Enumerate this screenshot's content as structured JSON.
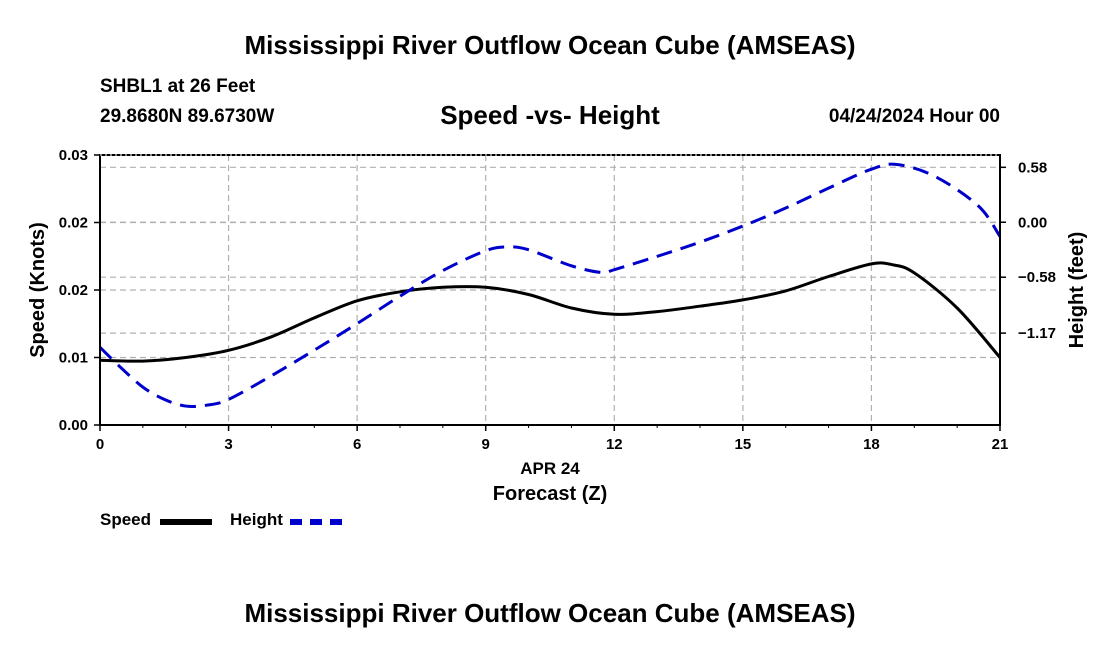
{
  "title": "Mississippi River Outflow Ocean Cube (AMSEAS)",
  "title_repeat": "Mississippi River Outflow Ocean Cube (AMSEAS)",
  "station": "SHBL1 at 26 Feet",
  "coordinates": "29.8680N  89.6730W",
  "date": "04/24/2024 Hour 00",
  "colors": {
    "speed": "#000000",
    "height": "#0000cc",
    "grid": "#b0b0b0"
  },
  "chart_data": {
    "type": "line",
    "title": "Speed -vs- Height",
    "xlabel": "Forecast (Z)",
    "xlabel_date": "APR 24",
    "ylabel": "Speed (Knots)",
    "y2label": "Height (feet)",
    "xlim": [
      0,
      21
    ],
    "ylim": [
      0,
      0.03
    ],
    "y2lim": [
      -2.14,
      0.71
    ],
    "x_ticks": [
      0,
      3,
      6,
      9,
      12,
      15,
      18,
      21
    ],
    "x_tick_labels": [
      "0",
      "3",
      "6",
      "9",
      "12",
      "15",
      "18",
      "21"
    ],
    "y_ticks": [
      0,
      0.0075,
      0.015,
      0.0225,
      0.03
    ],
    "y_tick_labels": [
      "0.00",
      "0.01",
      "0.02",
      "0.02",
      "0.03"
    ],
    "y2_ticks": [
      0.58,
      0.0,
      -0.58,
      -1.17
    ],
    "y2_tick_labels": [
      "0.58",
      "0.00",
      "−0.58",
      "−1.17"
    ],
    "grid": true,
    "series": [
      {
        "name": "Speed",
        "axis": "left",
        "style": "solid",
        "x": [
          0,
          1,
          2,
          3,
          4,
          5,
          6,
          7,
          8,
          9,
          10,
          11,
          12,
          13,
          14,
          15,
          16,
          17,
          18,
          18.5,
          19,
          20,
          21
        ],
        "values": [
          0.0072,
          0.0071,
          0.0075,
          0.0083,
          0.0098,
          0.0119,
          0.0138,
          0.0148,
          0.0153,
          0.0153,
          0.0145,
          0.013,
          0.0123,
          0.0126,
          0.0132,
          0.0139,
          0.0149,
          0.0165,
          0.0179,
          0.0178,
          0.0169,
          0.013,
          0.0075
        ]
      },
      {
        "name": "Height",
        "axis": "right",
        "style": "dashed",
        "x": [
          0,
          0.5,
          1,
          1.5,
          2,
          2.5,
          3,
          4,
          5,
          6,
          7,
          8,
          9,
          9.5,
          10,
          11,
          11.7,
          12,
          13,
          14,
          15,
          16,
          17,
          18,
          18.6,
          19.5,
          20.5,
          21
        ],
        "values": [
          -1.32,
          -1.54,
          -1.74,
          -1.87,
          -1.94,
          -1.93,
          -1.87,
          -1.62,
          -1.35,
          -1.07,
          -0.78,
          -0.51,
          -0.3,
          -0.26,
          -0.29,
          -0.46,
          -0.53,
          -0.5,
          -0.36,
          -0.21,
          -0.04,
          0.15,
          0.36,
          0.56,
          0.61,
          0.48,
          0.17,
          -0.15
        ]
      }
    ],
    "legend": [
      {
        "label": "Speed",
        "series": "Speed"
      },
      {
        "label": "Height",
        "series": "Height"
      }
    ],
    "legend_position": "bottom-left"
  }
}
